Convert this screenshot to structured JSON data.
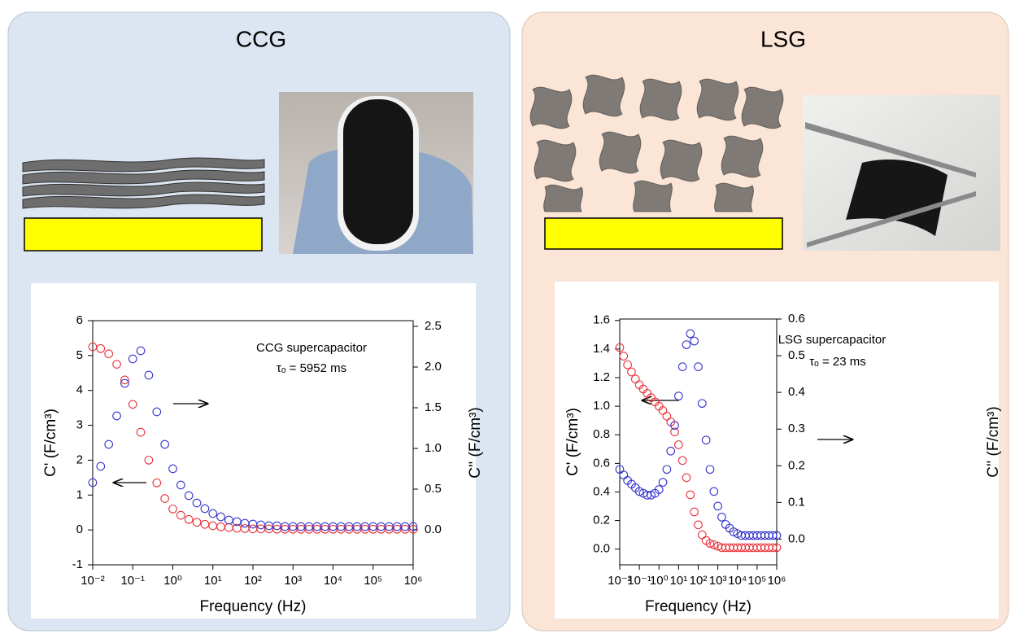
{
  "panels": [
    {
      "title": "CCG"
    },
    {
      "title": "LSG"
    }
  ],
  "chart_data": [
    {
      "type": "scatter",
      "x_scale": "log",
      "xlabel": "Frequency (Hz)",
      "ylabel": "C' (F/cm³)",
      "y2label": "C'' (F/cm³)",
      "annotations": [
        "CCG supercapacitor",
        "τₒ = 5952 ms"
      ],
      "xlim": [
        0.01,
        1000000
      ],
      "xticks": [
        {
          "value": 0.01,
          "label": "10⁻²"
        },
        {
          "value": 0.1,
          "label": "10⁻¹"
        },
        {
          "value": 1,
          "label": "10⁰"
        },
        {
          "value": 10,
          "label": "10¹"
        },
        {
          "value": 100,
          "label": "10²"
        },
        {
          "value": 1000,
          "label": "10³"
        },
        {
          "value": 10000,
          "label": "10⁴"
        },
        {
          "value": 100000,
          "label": "10⁵"
        },
        {
          "value": 1000000,
          "label": "10⁶"
        }
      ],
      "ylim": [
        -1,
        6
      ],
      "yticks": [
        -1,
        0,
        1,
        2,
        3,
        4,
        5,
        6
      ],
      "y2lim": [
        -0.43,
        2.57
      ],
      "y2ticks": [
        {
          "value": 0,
          "label": "0.0"
        },
        0.5,
        {
          "value": 1,
          "label": "1.0"
        },
        1.5,
        {
          "value": 2,
          "label": "2.0"
        },
        2.5
      ],
      "x": [
        0.01,
        0.0158,
        0.0251,
        0.0398,
        0.0631,
        0.1,
        0.158,
        0.251,
        0.398,
        0.631,
        1,
        1.58,
        2.51,
        3.98,
        6.31,
        10,
        15.8,
        25.1,
        39.8,
        63.1,
        100,
        158,
        251,
        398,
        631,
        1000,
        1580,
        2510,
        3980,
        6310,
        10000,
        15800,
        25100,
        39800,
        63100,
        100000,
        158000,
        251000,
        398000,
        631000,
        1000000
      ],
      "series": [
        {
          "color": "#e8333a",
          "axis": "y",
          "values": [
            5.25,
            5.2,
            5.05,
            4.75,
            4.3,
            3.6,
            2.8,
            2.0,
            1.35,
            0.9,
            0.6,
            0.42,
            0.3,
            0.22,
            0.16,
            0.12,
            0.09,
            0.07,
            0.05,
            0.04,
            0.03,
            0.03,
            0.03,
            0.02,
            0.02,
            0.02,
            0.02,
            0.02,
            0.02,
            0.02,
            0.02,
            0.02,
            0.02,
            0.02,
            0.02,
            0.02,
            0.02,
            0.02,
            0.02,
            0.02,
            0.02
          ]
        },
        {
          "color": "#3333cc",
          "axis": "y2",
          "values": [
            0.58,
            0.78,
            1.05,
            1.4,
            1.8,
            2.1,
            2.2,
            1.9,
            1.45,
            1.05,
            0.75,
            0.55,
            0.42,
            0.33,
            0.26,
            0.2,
            0.16,
            0.12,
            0.1,
            0.08,
            0.07,
            0.06,
            0.05,
            0.05,
            0.04,
            0.04,
            0.04,
            0.04,
            0.04,
            0.04,
            0.04,
            0.04,
            0.04,
            0.04,
            0.04,
            0.04,
            0.04,
            0.04,
            0.04,
            0.04,
            0.04
          ]
        }
      ]
    },
    {
      "type": "scatter",
      "x_scale": "log",
      "xlabel": "Frequency (Hz)",
      "ylabel": "C' (F/cm³)",
      "y2label": "C'' (F/cm³)",
      "annotations": [
        "LSG supercapacitor",
        "τₒ = 23 ms"
      ],
      "xlim": [
        0.01,
        1000000
      ],
      "xticks": [
        {
          "value": 0.01,
          "label": "10⁻²"
        },
        {
          "value": 0.1,
          "label": "10⁻¹"
        },
        {
          "value": 1,
          "label": "10⁰"
        },
        {
          "value": 10,
          "label": "10¹"
        },
        {
          "value": 100,
          "label": "10²"
        },
        {
          "value": 1000,
          "label": "10³"
        },
        {
          "value": 10000,
          "label": "10⁴"
        },
        {
          "value": 100000,
          "label": "10⁵"
        },
        {
          "value": 1000000,
          "label": "10⁶"
        }
      ],
      "ylim": [
        -0.11,
        1.61
      ],
      "yticks": [
        {
          "value": 0,
          "label": "0.0"
        },
        0.2,
        0.4,
        0.6,
        0.8,
        {
          "value": 1,
          "label": "1.0"
        },
        1.2,
        1.4,
        1.6
      ],
      "y2lim": [
        -0.07,
        0.6
      ],
      "y2ticks": [
        {
          "value": 0,
          "label": "0.0"
        },
        0.1,
        0.2,
        0.3,
        0.4,
        0.5,
        0.6
      ],
      "x": [
        0.01,
        0.0158,
        0.0251,
        0.0398,
        0.0631,
        0.1,
        0.158,
        0.251,
        0.398,
        0.631,
        1,
        1.58,
        2.51,
        3.98,
        6.31,
        10,
        15.8,
        25.1,
        39.8,
        63.1,
        100,
        158,
        251,
        398,
        631,
        1000,
        1580,
        2510,
        3980,
        6310,
        10000,
        15800,
        25100,
        39800,
        63100,
        100000,
        158000,
        251000,
        398000,
        631000,
        1000000
      ],
      "series": [
        {
          "color": "#e8333a",
          "axis": "y",
          "values": [
            1.41,
            1.35,
            1.29,
            1.24,
            1.19,
            1.15,
            1.12,
            1.09,
            1.06,
            1.03,
            1.0,
            0.97,
            0.93,
            0.89,
            0.82,
            0.73,
            0.62,
            0.5,
            0.38,
            0.26,
            0.17,
            0.1,
            0.06,
            0.04,
            0.03,
            0.02,
            0.01,
            0.01,
            0.01,
            0.01,
            0.01,
            0.01,
            0.01,
            0.01,
            0.01,
            0.01,
            0.01,
            0.01,
            0.01,
            0.01,
            0.01
          ]
        },
        {
          "color": "#3333cc",
          "axis": "y2",
          "values": [
            0.19,
            0.175,
            0.16,
            0.15,
            0.14,
            0.13,
            0.125,
            0.12,
            0.12,
            0.125,
            0.135,
            0.155,
            0.19,
            0.24,
            0.31,
            0.39,
            0.47,
            0.53,
            0.56,
            0.54,
            0.47,
            0.37,
            0.27,
            0.19,
            0.13,
            0.09,
            0.06,
            0.04,
            0.03,
            0.02,
            0.015,
            0.01,
            0.01,
            0.01,
            0.01,
            0.01,
            0.01,
            0.01,
            0.01,
            0.01,
            0.01
          ]
        }
      ]
    }
  ]
}
